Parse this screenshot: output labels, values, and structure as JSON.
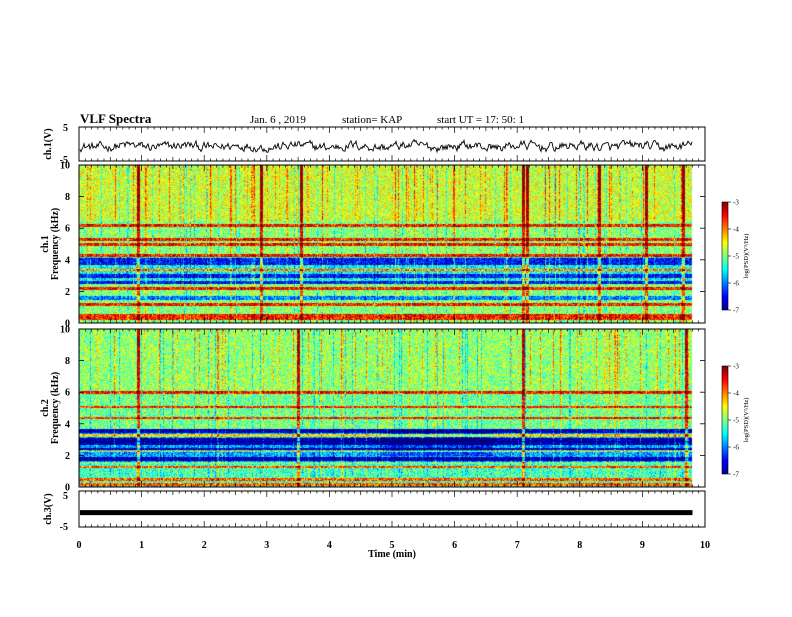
{
  "header": {
    "title": "VLF Spectra",
    "date": "Jan. 6  , 2019",
    "station": "station= KAP",
    "start": "start  UT  =   17: 50: 1"
  },
  "chart_data": [
    {
      "id": "ch1_waveform",
      "type": "line",
      "ylabel": "ch.1(V)",
      "ylim": [
        -5,
        5
      ],
      "yticks": [
        "5",
        "-5"
      ],
      "xlim": [
        0,
        10
      ],
      "data_end_min": 9.8,
      "series": [
        {
          "color": "#000000",
          "amplitude_v": 1.0,
          "offset_v": -0.7
        }
      ]
    },
    {
      "id": "ch1_spectrogram",
      "type": "heatmap",
      "ylabel": "ch.1",
      "ylabel2": "Frequency (kHz)",
      "ylim": [
        0,
        10
      ],
      "yticks": [
        "0",
        "2",
        "4",
        "6",
        "8",
        "10"
      ],
      "xlim": [
        0,
        10
      ],
      "data_end_min": 9.8,
      "colorbar": {
        "label": "log(PSD)(V²/Hz)",
        "range": [
          -7,
          -3
        ],
        "ticks": [
          "-3",
          "-4",
          "-5",
          "-6",
          "-7"
        ]
      },
      "hot_bands_khz": [
        0.3,
        0.5,
        1.2,
        2.2,
        3.4,
        4.3,
        5.0,
        5.3,
        6.2
      ],
      "quiet_bands_khz": [
        1.6,
        2.6,
        3.0,
        3.8,
        4.0
      ],
      "bursts_min": [
        0.95,
        2.9,
        3.55,
        7.1,
        7.15,
        8.3,
        9.05,
        9.65
      ]
    },
    {
      "id": "ch2_spectrogram",
      "type": "heatmap",
      "ylabel": "ch.2",
      "ylabel2": "Frequency (kHz)",
      "ylim": [
        0,
        10
      ],
      "yticks": [
        "0",
        "2",
        "4",
        "6",
        "8",
        "10"
      ],
      "xlim": [
        0,
        10
      ],
      "data_end_min": 9.8,
      "colorbar": {
        "label": "log(PSD)(V²/Hz)",
        "range": [
          -7,
          -3
        ],
        "ticks": [
          "-3",
          "-4",
          "-5",
          "-6",
          "-7"
        ]
      },
      "hot_bands_khz": [
        0.2,
        0.5,
        1.3,
        2.3,
        3.3,
        4.4,
        5.1,
        6.0
      ],
      "quiet_bands_khz": [
        1.8,
        2.4,
        2.8,
        3.0,
        3.6
      ],
      "bursts_min": [
        0.95,
        3.5,
        7.1,
        9.7
      ]
    },
    {
      "id": "ch3_waveform",
      "type": "line",
      "ylabel": "ch.3(V)",
      "ylim": [
        -5,
        5
      ],
      "yticks": [
        "5",
        "-5"
      ],
      "xlim": [
        0,
        10
      ],
      "data_end_min": 9.8,
      "series": [
        {
          "color": "#000000",
          "constant_v": -1.0
        }
      ]
    }
  ],
  "x_axis": {
    "label": "Time  (min)",
    "ticks": [
      "0",
      "1",
      "2",
      "3",
      "4",
      "5",
      "6",
      "7",
      "8",
      "9",
      "10"
    ]
  }
}
